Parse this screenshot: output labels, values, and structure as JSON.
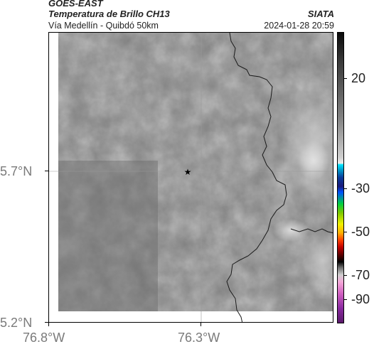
{
  "header": {
    "satellite": "GOES-EAST",
    "product": "Temperatura de Brillo CH13",
    "source": "SIATA",
    "region": "Vía Medellín - Quibdó 50km",
    "timestamp": "2024-01-28 20:59"
  },
  "axes": {
    "latitude_ticks": [
      "5.7°N",
      "5.2°N"
    ],
    "longitude_ticks": [
      "76.8°W",
      "76.3°W"
    ]
  },
  "colorbar": {
    "labels": [
      "20",
      "-30",
      "-50",
      "-70",
      "-90"
    ]
  },
  "marker": {
    "symbol": "★",
    "icon": "star-icon"
  },
  "colors": {
    "map_gray": "#7f7f7f",
    "boundary": "#1a1a1a",
    "grid": "#9a9a9a"
  }
}
